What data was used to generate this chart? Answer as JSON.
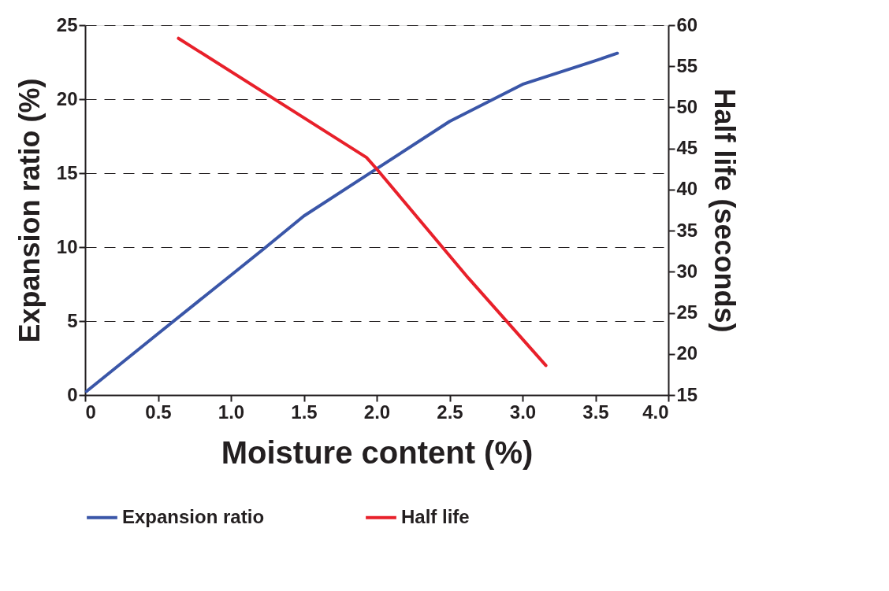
{
  "chart_data": {
    "type": "line",
    "xlabel": "Moisture content (%)",
    "ylabel": "Expansion ratio (%)",
    "y2label": "Half life (seconds)",
    "xlim": [
      0,
      4
    ],
    "xticks": [
      0,
      0.5,
      {
        "value": 1,
        "label": "1.0"
      },
      1.5,
      {
        "value": 2,
        "label": "2.0"
      },
      2.5,
      {
        "value": 3,
        "label": "3.0"
      },
      3.5,
      {
        "value": 4,
        "label": "4.0"
      }
    ],
    "ylim": [
      0,
      25
    ],
    "yticks": [
      0,
      5,
      10,
      15,
      20,
      25
    ],
    "y2lim": [
      15,
      60
    ],
    "y2ticks": [
      15,
      20,
      25,
      30,
      35,
      40,
      45,
      50,
      55,
      60
    ],
    "grid": "y",
    "legend": "bottom",
    "line_style": "solid",
    "series": [
      {
        "name": "Expansion ratio",
        "color": "#3a56a8",
        "x": [
          0.01,
          0.5,
          1.0,
          1.24,
          1.5,
          2.0,
          2.5,
          3.0,
          3.5,
          3.65
        ],
        "values": [
          0.25,
          4.15,
          8.1,
          10,
          12.1,
          15.3,
          18.5,
          21,
          22.6,
          23.1
        ]
      },
      {
        "name": "Half life",
        "color": "#e8202a",
        "axis": "y2",
        "x": [
          0.64,
          1.93,
          2.0,
          2.63,
          3.16
        ],
        "values": [
          58.4,
          43.9,
          42.5,
          29.2,
          18.6
        ]
      }
    ]
  }
}
